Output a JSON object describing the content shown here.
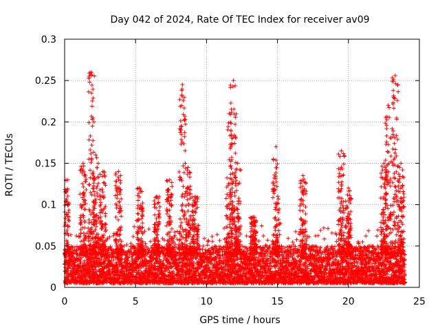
{
  "chart_data": {
    "type": "scatter",
    "title": "Day 042 of 2024, Rate Of TEC Index for receiver av09",
    "xlabel": "GPS time / hours",
    "ylabel": "ROTI / TECUs",
    "xlim": [
      0,
      25
    ],
    "ylim": [
      0,
      0.3
    ],
    "xticks": [
      0,
      5,
      10,
      15,
      20,
      25
    ],
    "xtick_labels": [
      "0",
      "5",
      "10",
      "15",
      "20",
      "25"
    ],
    "yticks": [
      0,
      0.05,
      0.1,
      0.15,
      0.2,
      0.25,
      0.3
    ],
    "ytick_labels": [
      "0",
      "0.05",
      "0.1",
      "0.15",
      "0.2",
      "0.25",
      "0.3"
    ],
    "grid": true,
    "marker": "+",
    "color": "#ff0000",
    "data_range_hours": [
      0,
      24
    ],
    "baseline_range": [
      0.005,
      0.05
    ],
    "peaks": [
      {
        "x": 0.1,
        "y": 0.13
      },
      {
        "x": 1.3,
        "y": 0.15
      },
      {
        "x": 1.9,
        "y": 0.26
      },
      {
        "x": 2.2,
        "y": 0.16
      },
      {
        "x": 2.7,
        "y": 0.14
      },
      {
        "x": 3.8,
        "y": 0.14
      },
      {
        "x": 5.3,
        "y": 0.12
      },
      {
        "x": 6.5,
        "y": 0.11
      },
      {
        "x": 7.4,
        "y": 0.13
      },
      {
        "x": 8.3,
        "y": 0.245
      },
      {
        "x": 8.7,
        "y": 0.145
      },
      {
        "x": 9.2,
        "y": 0.11
      },
      {
        "x": 11.6,
        "y": 0.21
      },
      {
        "x": 11.9,
        "y": 0.25
      },
      {
        "x": 12.2,
        "y": 0.15
      },
      {
        "x": 13.3,
        "y": 0.085
      },
      {
        "x": 14.9,
        "y": 0.17
      },
      {
        "x": 16.8,
        "y": 0.135
      },
      {
        "x": 19.5,
        "y": 0.165
      },
      {
        "x": 20.0,
        "y": 0.12
      },
      {
        "x": 22.5,
        "y": 0.15
      },
      {
        "x": 22.8,
        "y": 0.22
      },
      {
        "x": 23.3,
        "y": 0.256
      },
      {
        "x": 23.7,
        "y": 0.15
      }
    ]
  }
}
